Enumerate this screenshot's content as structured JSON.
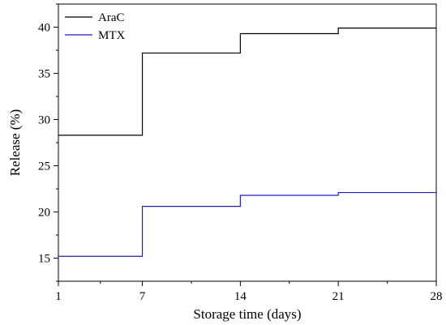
{
  "chart_data": {
    "type": "line",
    "step": true,
    "xlabel": "Storage time (days)",
    "ylabel": "Release (%)",
    "xlim": [
      1,
      28
    ],
    "ylim": [
      12.5,
      42.5
    ],
    "x_ticks": [
      1,
      7,
      14,
      21,
      28
    ],
    "y_ticks": [
      15,
      20,
      25,
      30,
      35,
      40
    ],
    "legend_position": "top-left",
    "series": [
      {
        "name": "AraC",
        "color": "#000000",
        "x": [
          1,
          7,
          14,
          21,
          28
        ],
        "values": [
          28.3,
          37.2,
          39.3,
          39.9,
          39.9
        ]
      },
      {
        "name": "MTX",
        "color": "#1f1fbf",
        "x": [
          1,
          7,
          14,
          21,
          28
        ],
        "values": [
          15.2,
          20.6,
          21.8,
          22.1,
          22.1
        ]
      }
    ]
  }
}
